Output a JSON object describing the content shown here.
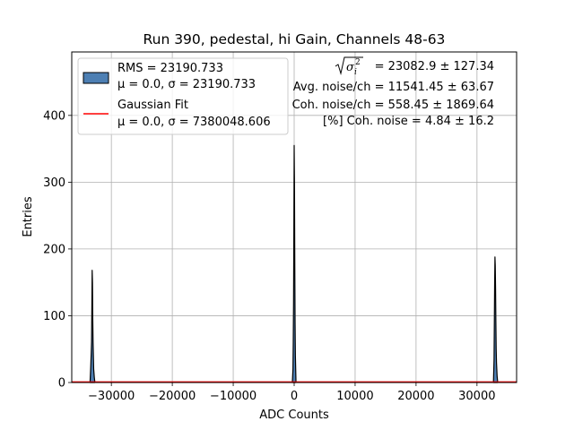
{
  "chart_data": {
    "type": "bar",
    "title": "Run 390, pedestal, hi Gain, Channels 48-63",
    "xlabel": "ADC Counts",
    "ylabel": "Entries",
    "xlim": [
      -36500,
      36500
    ],
    "ylim": [
      0,
      495
    ],
    "xticks": [
      -30000,
      -20000,
      -10000,
      0,
      10000,
      20000,
      30000
    ],
    "xtick_labels": [
      "−30000",
      "−20000",
      "−10000",
      "0",
      "10000",
      "20000",
      "30000"
    ],
    "yticks": [
      0,
      100,
      200,
      300,
      400
    ],
    "ytick_labels": [
      "0",
      "100",
      "200",
      "300",
      "400"
    ],
    "grid": true,
    "legend_position": "top-left",
    "series": [
      {
        "name": "RMS = 23190.733",
        "name_line2": "μ = 0.0, σ = 23190.733",
        "kind": "histogram",
        "color": "#4d7fb3",
        "edgecolor": "#000000",
        "peaks": [
          {
            "x": [
              -33500,
              -33400,
              -33300,
              -33250,
              -33200,
              -33150,
              -33100,
              -33050,
              -33000,
              -32950,
              -32900,
              -32800,
              -32700
            ],
            "y": [
              0,
              20,
              45,
              60,
              110,
              168,
              150,
              95,
              60,
              40,
              20,
              8,
              0
            ]
          },
          {
            "x": [
              -300,
              -200,
              -150,
              -100,
              -50,
              0,
              50,
              100,
              150,
              200,
              300
            ],
            "y": [
              0,
              20,
              60,
              120,
              230,
              355,
              300,
              180,
              90,
              40,
              0
            ]
          },
          {
            "x": [
              32700,
              32800,
              32850,
              32900,
              32950,
              33000,
              33050,
              33100,
              33150,
              33200,
              33300,
              33400
            ],
            "y": [
              0,
              35,
              90,
              150,
              188,
              175,
              140,
              90,
              50,
              30,
              10,
              0
            ]
          }
        ]
      },
      {
        "name": "Gaussian Fit",
        "name_line2": "μ = 0.0, σ = 7380048.606",
        "kind": "line",
        "color": "#ff0000",
        "mu": 0.0,
        "sigma": 7380048.606
      }
    ],
    "annotations": [
      "= 23082.9 ± 127.34",
      "Avg. noise/ch = 11541.45 ± 63.67",
      "Coh. noise/ch = 558.45 ± 1869.64",
      "[%] Coh. noise = 4.84 ± 16.2"
    ]
  }
}
